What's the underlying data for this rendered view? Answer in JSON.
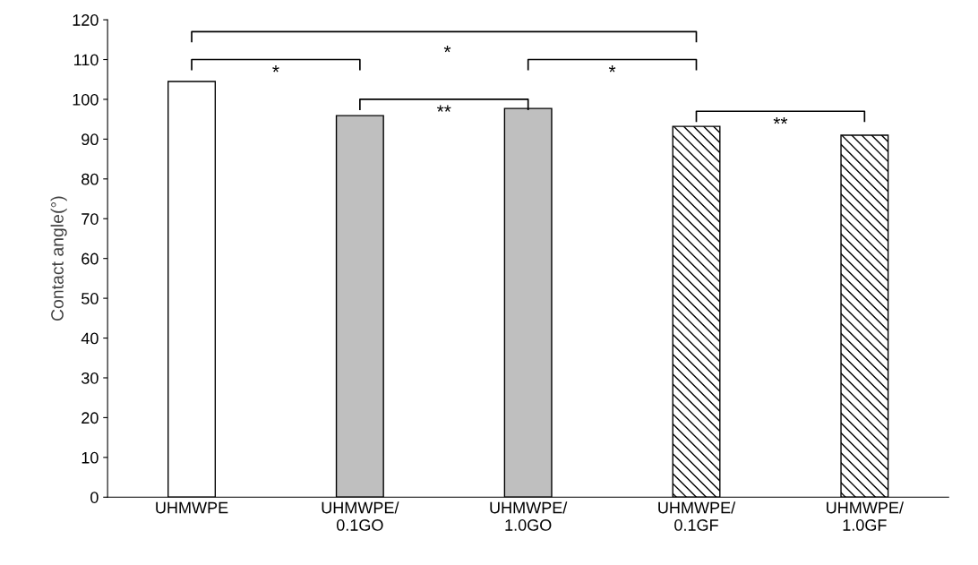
{
  "chart_data": {
    "type": "bar",
    "ylabel": "Contact angle(°)",
    "categories": [
      "UHMWPE",
      "UHMWPE/\n0.1GO",
      "UHMWPE/\n1.0GO",
      "UHMWPE/\n0.1GF",
      "UHMWPE/\n1.0GF"
    ],
    "values": [
      104.5,
      95.9,
      97.7,
      93.2,
      91.0
    ],
    "colors": [
      "#ffffff",
      "#bfbfbf",
      "#bfbfbf",
      "#000000",
      "#000000"
    ],
    "ylim": [
      0,
      120
    ],
    "yticks": [
      0,
      10,
      20,
      30,
      40,
      50,
      60,
      70,
      80,
      90,
      100,
      110,
      120
    ],
    "grid": false,
    "legend": false,
    "annotations": [
      "*",
      "**",
      "*",
      "*",
      "**"
    ]
  }
}
